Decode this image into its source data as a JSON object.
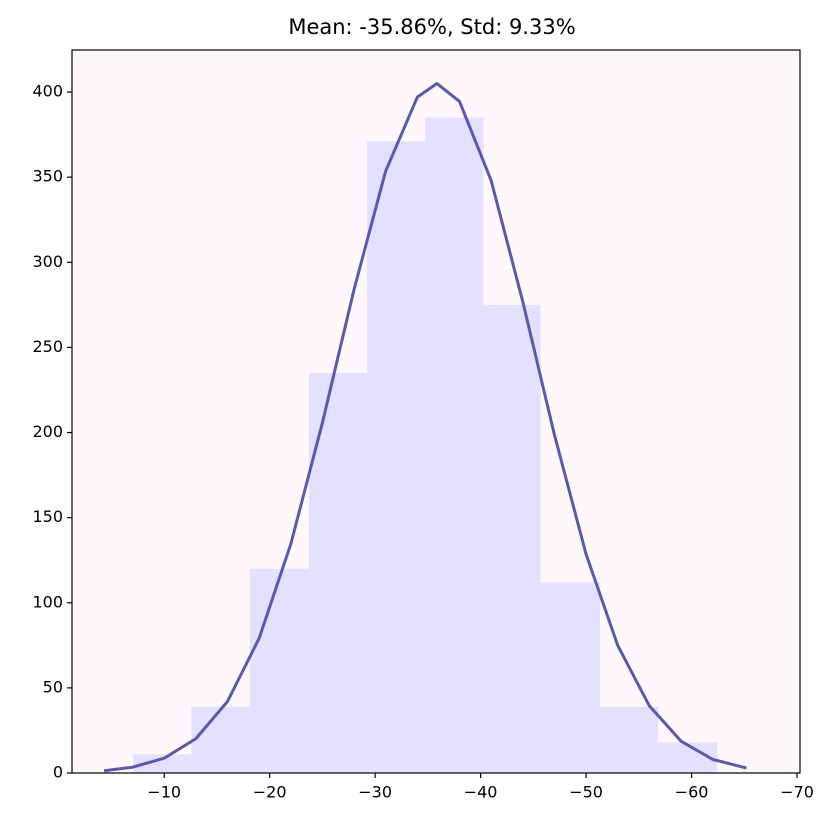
{
  "chart_data": {
    "type": "histogram",
    "title": "Mean: -35.86%, Std: 9.33%",
    "bins": [
      -7.06,
      -12.58,
      -18.1,
      -23.71,
      -29.23,
      -34.75,
      -40.27,
      -45.69,
      -51.31,
      -56.83,
      -62.44
    ],
    "values": [
      11,
      39,
      120,
      235,
      371,
      385,
      275,
      112,
      39,
      18
    ],
    "color": "#e3e1fd",
    "curve": {
      "color": "#5b5aa8",
      "x": [
        -4.3,
        -7,
        -10,
        -13,
        -16,
        -19,
        -22,
        -25,
        -28,
        -31,
        -34,
        -35.86,
        -38,
        -41,
        -44,
        -47,
        -50,
        -53,
        -56,
        -59,
        -62,
        -65.2
      ],
      "values": [
        1.3,
        3.4,
        8.7,
        20.1,
        42.0,
        79.1,
        134.4,
        205.7,
        284.0,
        353.6,
        397.0,
        405,
        394.5,
        348.0,
        276.8,
        198.6,
        128.5,
        74.9,
        39.4,
        18.7,
        8.0,
        2.9
      ]
    },
    "xlim": [
      -1.26,
      -70.28
    ],
    "xticks": [
      {
        "value": -10,
        "label": "−10"
      },
      {
        "value": -20,
        "label": "−20"
      },
      {
        "value": -30,
        "label": "−30"
      },
      {
        "value": -40,
        "label": "−40"
      },
      {
        "value": -50,
        "label": "−50"
      },
      {
        "value": -60,
        "label": "−60"
      },
      {
        "value": -70,
        "label": "−70"
      }
    ],
    "ylim": [
      0,
      424.7
    ],
    "yticks": [
      0,
      50,
      100,
      150,
      200,
      250,
      300,
      350,
      400
    ],
    "background": "#fef8fd"
  }
}
